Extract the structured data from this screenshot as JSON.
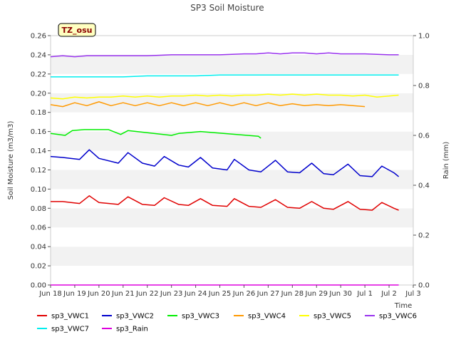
{
  "chart_data": {
    "type": "line",
    "title": "SP3 Soil Moisture",
    "xlabel": "Time",
    "ylabel": "Soil Moisture (m3/m3)",
    "y2label": "Rain (mm)",
    "badge": "TZ_osu",
    "grid": "horizontal bands",
    "legend_placement": "bottom",
    "xlim": [
      0,
      15
    ],
    "ylim": [
      0,
      0.26
    ],
    "y2lim": [
      0,
      1.0
    ],
    "x_ticks": [
      {
        "x": 0,
        "label": "Jun 18"
      },
      {
        "x": 1,
        "label": "Jun 19"
      },
      {
        "x": 2,
        "label": "Jun 20"
      },
      {
        "x": 3,
        "label": "Jun 21"
      },
      {
        "x": 4,
        "label": "Jun 22"
      },
      {
        "x": 5,
        "label": "Jun 23"
      },
      {
        "x": 6,
        "label": "Jun 24"
      },
      {
        "x": 7,
        "label": "Jun 25"
      },
      {
        "x": 8,
        "label": "Jun 26"
      },
      {
        "x": 9,
        "label": "Jun 27"
      },
      {
        "x": 10,
        "label": "Jun 28"
      },
      {
        "x": 11,
        "label": "Jun 29"
      },
      {
        "x": 12,
        "label": "Jun 30"
      },
      {
        "x": 13,
        "label": "Jul 1"
      },
      {
        "x": 14,
        "label": "Jul 2"
      },
      {
        "x": 15,
        "label": "Jul 3"
      }
    ],
    "y_ticks": [
      {
        "v": 0.0,
        "label": "0.00"
      },
      {
        "v": 0.02,
        "label": "0.02"
      },
      {
        "v": 0.04,
        "label": "0.04"
      },
      {
        "v": 0.06,
        "label": "0.06"
      },
      {
        "v": 0.08,
        "label": "0.08"
      },
      {
        "v": 0.1,
        "label": "0.10"
      },
      {
        "v": 0.12,
        "label": "0.12"
      },
      {
        "v": 0.14,
        "label": "0.14"
      },
      {
        "v": 0.16,
        "label": "0.16"
      },
      {
        "v": 0.18,
        "label": "0.18"
      },
      {
        "v": 0.2,
        "label": "0.20"
      },
      {
        "v": 0.22,
        "label": "0.22"
      },
      {
        "v": 0.24,
        "label": "0.24"
      },
      {
        "v": 0.26,
        "label": "0.26"
      }
    ],
    "y2_ticks": [
      {
        "v": 0.0,
        "label": "0.0"
      },
      {
        "v": 0.2,
        "label": "0.2"
      },
      {
        "v": 0.4,
        "label": "0.4"
      },
      {
        "v": 0.6,
        "label": "0.6"
      },
      {
        "v": 0.8,
        "label": "0.8"
      },
      {
        "v": 1.0,
        "label": "1.0"
      }
    ],
    "series": [
      {
        "name": "sp3_VWC1",
        "color": "#e00000",
        "axis": "left",
        "x": [
          0.0,
          0.5,
          1.2,
          1.6,
          2.0,
          2.8,
          3.2,
          3.8,
          4.3,
          4.7,
          5.3,
          5.7,
          6.2,
          6.7,
          7.3,
          7.6,
          8.2,
          8.7,
          9.3,
          9.8,
          10.3,
          10.8,
          11.3,
          11.7,
          12.3,
          12.8,
          13.3,
          13.7,
          14.2,
          14.4
        ],
        "y": [
          0.087,
          0.087,
          0.085,
          0.093,
          0.086,
          0.084,
          0.092,
          0.084,
          0.083,
          0.091,
          0.084,
          0.083,
          0.09,
          0.083,
          0.082,
          0.09,
          0.082,
          0.081,
          0.089,
          0.081,
          0.08,
          0.087,
          0.08,
          0.079,
          0.087,
          0.079,
          0.078,
          0.086,
          0.08,
          0.078
        ]
      },
      {
        "name": "sp3_VWC2",
        "color": "#0000cc",
        "axis": "left",
        "x": [
          0.0,
          0.5,
          1.2,
          1.6,
          2.0,
          2.8,
          3.2,
          3.8,
          4.3,
          4.7,
          5.3,
          5.7,
          6.2,
          6.7,
          7.3,
          7.6,
          8.2,
          8.7,
          9.3,
          9.8,
          10.3,
          10.8,
          11.3,
          11.7,
          12.3,
          12.8,
          13.3,
          13.7,
          14.2,
          14.4
        ],
        "y": [
          0.134,
          0.133,
          0.131,
          0.141,
          0.132,
          0.127,
          0.138,
          0.127,
          0.124,
          0.134,
          0.125,
          0.123,
          0.133,
          0.122,
          0.12,
          0.131,
          0.12,
          0.118,
          0.13,
          0.118,
          0.117,
          0.127,
          0.116,
          0.115,
          0.126,
          0.114,
          0.113,
          0.124,
          0.117,
          0.113
        ]
      },
      {
        "name": "sp3_VWC3",
        "color": "#00ee00",
        "axis": "left",
        "x": [
          0.0,
          0.6,
          0.9,
          1.4,
          2.4,
          2.9,
          3.2,
          5.0,
          5.3,
          6.2,
          8.6,
          8.7
        ],
        "y": [
          0.158,
          0.156,
          0.161,
          0.162,
          0.162,
          0.157,
          0.161,
          0.156,
          0.158,
          0.16,
          0.155,
          0.153
        ]
      },
      {
        "name": "sp3_VWC4",
        "color": "#ff9900",
        "axis": "left",
        "x": [
          0.0,
          0.5,
          1.0,
          1.5,
          2.0,
          2.5,
          3.0,
          3.5,
          4.0,
          4.5,
          5.0,
          5.5,
          6.0,
          6.5,
          7.0,
          7.5,
          8.0,
          8.5,
          9.0,
          9.5,
          10.0,
          10.5,
          11.0,
          11.5,
          12.0,
          12.5,
          13.0
        ],
        "y": [
          0.188,
          0.186,
          0.19,
          0.187,
          0.191,
          0.187,
          0.19,
          0.187,
          0.19,
          0.187,
          0.19,
          0.187,
          0.19,
          0.187,
          0.19,
          0.187,
          0.19,
          0.187,
          0.19,
          0.187,
          0.189,
          0.187,
          0.188,
          0.187,
          0.188,
          0.187,
          0.186
        ]
      },
      {
        "name": "sp3_VWC5",
        "color": "#ffff00",
        "axis": "left",
        "x": [
          0.0,
          0.5,
          1.0,
          1.5,
          2.0,
          2.5,
          3.0,
          3.5,
          4.0,
          4.5,
          5.0,
          5.5,
          6.0,
          6.5,
          7.0,
          7.5,
          8.0,
          8.5,
          9.0,
          9.5,
          10.0,
          10.5,
          11.0,
          11.5,
          12.0,
          12.5,
          13.0,
          13.5,
          14.0,
          14.4
        ],
        "y": [
          0.195,
          0.194,
          0.196,
          0.195,
          0.196,
          0.196,
          0.197,
          0.196,
          0.197,
          0.196,
          0.197,
          0.197,
          0.198,
          0.197,
          0.198,
          0.197,
          0.198,
          0.198,
          0.199,
          0.198,
          0.199,
          0.198,
          0.199,
          0.198,
          0.198,
          0.197,
          0.198,
          0.196,
          0.197,
          0.198
        ]
      },
      {
        "name": "sp3_VWC6",
        "color": "#9933ee",
        "axis": "left",
        "x": [
          0.0,
          0.5,
          1.0,
          1.5,
          2.0,
          3.0,
          4.0,
          5.0,
          6.0,
          7.0,
          8.0,
          8.5,
          9.0,
          9.5,
          10.0,
          10.5,
          11.0,
          11.5,
          12.0,
          13.0,
          14.0,
          14.4
        ],
        "y": [
          0.238,
          0.239,
          0.238,
          0.239,
          0.239,
          0.239,
          0.239,
          0.24,
          0.24,
          0.24,
          0.241,
          0.241,
          0.242,
          0.241,
          0.242,
          0.242,
          0.241,
          0.242,
          0.241,
          0.241,
          0.24,
          0.24
        ]
      },
      {
        "name": "sp3_VWC7",
        "color": "#00eeee",
        "axis": "left",
        "x": [
          0.0,
          1.0,
          2.0,
          3.0,
          4.0,
          5.0,
          6.0,
          7.0,
          8.0,
          8.5,
          9.0,
          10.0,
          11.0,
          12.0,
          13.0,
          14.0,
          14.4
        ],
        "y": [
          0.217,
          0.217,
          0.217,
          0.217,
          0.218,
          0.218,
          0.218,
          0.219,
          0.219,
          0.219,
          0.219,
          0.219,
          0.219,
          0.219,
          0.219,
          0.219,
          0.219
        ]
      },
      {
        "name": "sp3_Rain",
        "color": "#dd00dd",
        "axis": "right",
        "x": [
          0.0,
          14.4
        ],
        "y": [
          0.0,
          0.0
        ]
      }
    ]
  }
}
